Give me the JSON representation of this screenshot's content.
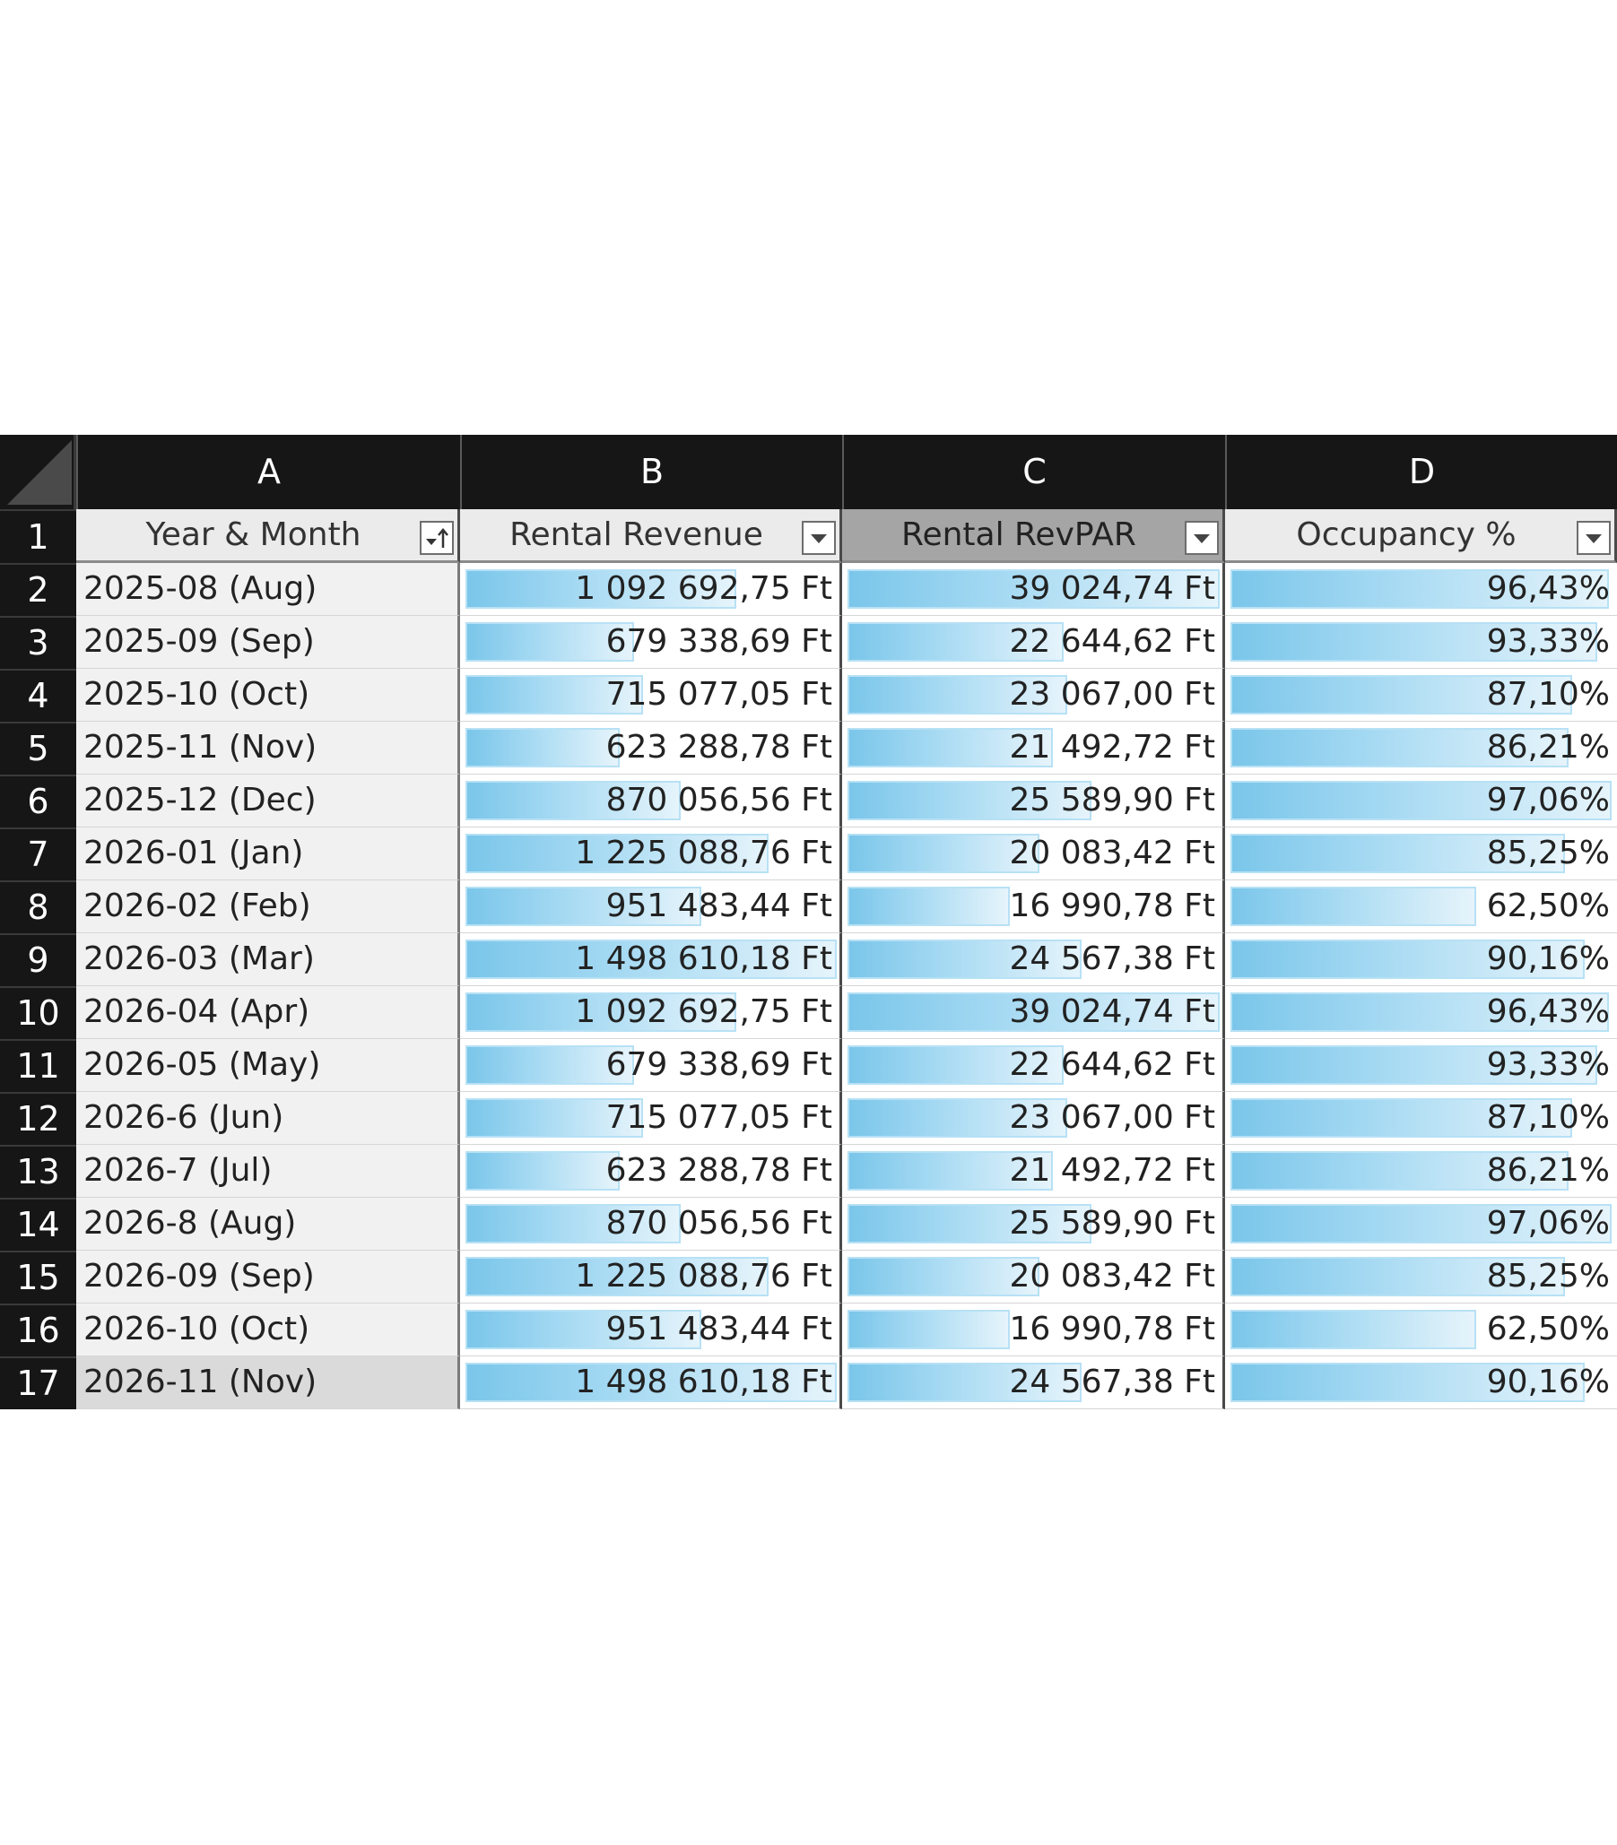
{
  "sheet": {
    "columns": [
      "A",
      "B",
      "C",
      "D"
    ],
    "row_numbers": [
      "1",
      "2",
      "3",
      "4",
      "5",
      "6",
      "7",
      "8",
      "9",
      "10",
      "11",
      "12",
      "13",
      "14",
      "15",
      "16",
      "17"
    ],
    "headers": {
      "a": "Year & Month",
      "b": "Rental Revenue",
      "c": "Rental RevPAR",
      "d": "Occupancy %"
    },
    "icons": {
      "header_a": "sort-ascending-filter-icon",
      "header_b": "filter-dropdown-icon",
      "header_c": "filter-dropdown-icon",
      "header_d": "filter-dropdown-icon"
    },
    "bar_color": "#7ac6ea",
    "rows": [
      {
        "month": "2025-08 (Aug)",
        "revenue": "1 092 692,75 Ft",
        "revpar": "39 024,74 Ft",
        "occupancy": "96,43%",
        "revenue_value": 1092692.75,
        "revpar_value": 39024.74,
        "occupancy_value": 96.43
      },
      {
        "month": "2025-09 (Sep)",
        "revenue": "679 338,69 Ft",
        "revpar": "22 644,62 Ft",
        "occupancy": "93,33%",
        "revenue_value": 679338.69,
        "revpar_value": 22644.62,
        "occupancy_value": 93.33
      },
      {
        "month": "2025-10 (Oct)",
        "revenue": "715 077,05 Ft",
        "revpar": "23 067,00 Ft",
        "occupancy": "87,10%",
        "revenue_value": 715077.05,
        "revpar_value": 23067.0,
        "occupancy_value": 87.1
      },
      {
        "month": "2025-11 (Nov)",
        "revenue": "623 288,78 Ft",
        "revpar": "21 492,72 Ft",
        "occupancy": "86,21%",
        "revenue_value": 623288.78,
        "revpar_value": 21492.72,
        "occupancy_value": 86.21
      },
      {
        "month": "2025-12 (Dec)",
        "revenue": "870 056,56 Ft",
        "revpar": "25 589,90 Ft",
        "occupancy": "97,06%",
        "revenue_value": 870056.56,
        "revpar_value": 25589.9,
        "occupancy_value": 97.06
      },
      {
        "month": "2026-01 (Jan)",
        "revenue": "1 225 088,76 Ft",
        "revpar": "20 083,42 Ft",
        "occupancy": "85,25%",
        "revenue_value": 1225088.76,
        "revpar_value": 20083.42,
        "occupancy_value": 85.25
      },
      {
        "month": "2026-02 (Feb)",
        "revenue": "951 483,44 Ft",
        "revpar": "16 990,78 Ft",
        "occupancy": "62,50%",
        "revenue_value": 951483.44,
        "revpar_value": 16990.78,
        "occupancy_value": 62.5
      },
      {
        "month": "2026-03 (Mar)",
        "revenue": "1 498 610,18 Ft",
        "revpar": "24 567,38 Ft",
        "occupancy": "90,16%",
        "revenue_value": 1498610.18,
        "revpar_value": 24567.38,
        "occupancy_value": 90.16
      },
      {
        "month": "2026-04 (Apr)",
        "revenue": "1 092 692,75 Ft",
        "revpar": "39 024,74 Ft",
        "occupancy": "96,43%",
        "revenue_value": 1092692.75,
        "revpar_value": 39024.74,
        "occupancy_value": 96.43
      },
      {
        "month": "2026-05 (May)",
        "revenue": "679 338,69 Ft",
        "revpar": "22 644,62 Ft",
        "occupancy": "93,33%",
        "revenue_value": 679338.69,
        "revpar_value": 22644.62,
        "occupancy_value": 93.33
      },
      {
        "month": "2026-6 (Jun)",
        "revenue": "715 077,05 Ft",
        "revpar": "23 067,00 Ft",
        "occupancy": "87,10%",
        "revenue_value": 715077.05,
        "revpar_value": 23067.0,
        "occupancy_value": 87.1
      },
      {
        "month": "2026-7 (Jul)",
        "revenue": "623 288,78 Ft",
        "revpar": "21 492,72 Ft",
        "occupancy": "86,21%",
        "revenue_value": 623288.78,
        "revpar_value": 21492.72,
        "occupancy_value": 86.21
      },
      {
        "month": "2026-8 (Aug)",
        "revenue": "870 056,56 Ft",
        "revpar": "25 589,90 Ft",
        "occupancy": "97,06%",
        "revenue_value": 870056.56,
        "revpar_value": 25589.9,
        "occupancy_value": 97.06
      },
      {
        "month": "2026-09 (Sep)",
        "revenue": "1 225 088,76 Ft",
        "revpar": "20 083,42 Ft",
        "occupancy": "85,25%",
        "revenue_value": 1225088.76,
        "revpar_value": 20083.42,
        "occupancy_value": 85.25
      },
      {
        "month": "2026-10 (Oct)",
        "revenue": "951 483,44 Ft",
        "revpar": "16 990,78 Ft",
        "occupancy": "62,50%",
        "revenue_value": 951483.44,
        "revpar_value": 16990.78,
        "occupancy_value": 62.5
      },
      {
        "month": "2026-11 (Nov)",
        "revenue": "1 498 610,18 Ft",
        "revpar": "24 567,38 Ft",
        "occupancy": "90,16%",
        "revenue_value": 1498610.18,
        "revpar_value": 24567.38,
        "occupancy_value": 90.16
      }
    ]
  }
}
